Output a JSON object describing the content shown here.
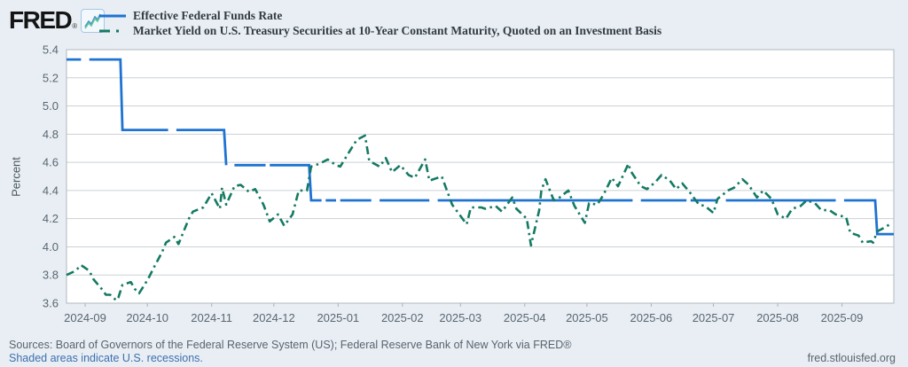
{
  "header": {
    "logo_text": "FRED",
    "registered_mark": "®"
  },
  "legend": [
    {
      "label": "Effective Federal Funds Rate",
      "color": "#1e73d2",
      "style": "solid"
    },
    {
      "label": "Market Yield on U.S. Treasury Securities at 10-Year Constant Maturity, Quoted on an Investment Basis",
      "color": "#147a63",
      "style": "dash-dot"
    }
  ],
  "footer": {
    "sources": "Sources: Board of Governors of the Federal Reserve System (US); Federal Reserve Bank of New York via FRED®",
    "recessions_note": "Shaded areas indicate U.S. recessions.",
    "site": "fred.stlouisfed.org"
  },
  "chart_data": {
    "type": "line",
    "ylabel": "Percent",
    "ylim": [
      3.6,
      5.4
    ],
    "grid": true,
    "legend_position": "top-left",
    "x_domain": [
      "2024-08-23",
      "2025-09-26"
    ],
    "y_ticks": [
      {
        "value": 5.4,
        "label": "5.4"
      },
      {
        "value": 5.2,
        "label": "5.2"
      },
      {
        "value": 5.0,
        "label": "5.0"
      },
      {
        "value": 4.8,
        "label": "4.8"
      },
      {
        "value": 4.6,
        "label": "4.6"
      },
      {
        "value": 4.4,
        "label": "4.4"
      },
      {
        "value": 4.2,
        "label": "4.2"
      },
      {
        "value": 4.0,
        "label": "4.0"
      },
      {
        "value": 3.8,
        "label": "3.8"
      },
      {
        "value": 3.6,
        "label": "3.6"
      }
    ],
    "x_ticks": [
      {
        "date": "2024-09-01",
        "label": "2024-09"
      },
      {
        "date": "2024-10-01",
        "label": "2024-10"
      },
      {
        "date": "2024-11-01",
        "label": "2024-11"
      },
      {
        "date": "2024-12-01",
        "label": "2024-12"
      },
      {
        "date": "2025-01-01",
        "label": "2025-01"
      },
      {
        "date": "2025-02-01",
        "label": "2025-02"
      },
      {
        "date": "2025-03-01",
        "label": "2025-03"
      },
      {
        "date": "2025-04-01",
        "label": "2025-04"
      },
      {
        "date": "2025-05-01",
        "label": "2025-05"
      },
      {
        "date": "2025-06-01",
        "label": "2025-06"
      },
      {
        "date": "2025-07-01",
        "label": "2025-07"
      },
      {
        "date": "2025-08-01",
        "label": "2025-08"
      },
      {
        "date": "2025-09-01",
        "label": "2025-09"
      }
    ],
    "series": [
      {
        "name": "Effective Federal Funds Rate",
        "color": "#1e73d2",
        "style": "solid",
        "segments": [
          [
            [
              "2024-08-23",
              5.33
            ],
            [
              "2024-08-30",
              5.33
            ]
          ],
          [
            [
              "2024-09-03",
              5.33
            ],
            [
              "2024-09-18",
              5.33
            ],
            [
              "2024-09-19",
              4.83
            ],
            [
              "2024-10-11",
              4.83
            ]
          ],
          [
            [
              "2024-10-15",
              4.83
            ],
            [
              "2024-11-07",
              4.83
            ],
            [
              "2024-11-08",
              4.58
            ]
          ],
          [
            [
              "2024-11-12",
              4.58
            ],
            [
              "2024-11-27",
              4.58
            ]
          ],
          [
            [
              "2024-11-29",
              4.58
            ],
            [
              "2024-12-18",
              4.58
            ],
            [
              "2024-12-19",
              4.33
            ],
            [
              "2024-12-24",
              4.33
            ]
          ],
          [
            [
              "2024-12-26",
              4.33
            ],
            [
              "2024-12-31",
              4.33
            ]
          ],
          [
            [
              "2025-01-02",
              4.33
            ],
            [
              "2025-01-17",
              4.33
            ]
          ],
          [
            [
              "2025-01-21",
              4.33
            ],
            [
              "2025-02-14",
              4.33
            ]
          ],
          [
            [
              "2025-02-18",
              4.33
            ],
            [
              "2025-05-23",
              4.33
            ]
          ],
          [
            [
              "2025-05-27",
              4.33
            ],
            [
              "2025-06-18",
              4.33
            ]
          ],
          [
            [
              "2025-06-20",
              4.33
            ],
            [
              "2025-07-03",
              4.33
            ]
          ],
          [
            [
              "2025-07-07",
              4.33
            ],
            [
              "2025-08-29",
              4.33
            ]
          ],
          [
            [
              "2025-09-02",
              4.33
            ],
            [
              "2025-09-17",
              4.33
            ],
            [
              "2025-09-18",
              4.09
            ],
            [
              "2025-09-26",
              4.09
            ]
          ]
        ]
      },
      {
        "name": "Market Yield on U.S. Treasury Securities at 10-Year Constant Maturity, Quoted on an Investment Basis",
        "color": "#147a63",
        "style": "dash-dot",
        "points": [
          [
            "2024-08-23",
            3.8
          ],
          [
            "2024-08-26",
            3.82
          ],
          [
            "2024-08-28",
            3.84
          ],
          [
            "2024-08-30",
            3.87
          ],
          [
            "2024-09-03",
            3.83
          ],
          [
            "2024-09-05",
            3.77
          ],
          [
            "2024-09-09",
            3.7
          ],
          [
            "2024-09-11",
            3.66
          ],
          [
            "2024-09-13",
            3.66
          ],
          [
            "2024-09-16",
            3.62
          ],
          [
            "2024-09-17",
            3.64
          ],
          [
            "2024-09-19",
            3.73
          ],
          [
            "2024-09-23",
            3.75
          ],
          [
            "2024-09-25",
            3.7
          ],
          [
            "2024-09-27",
            3.67
          ],
          [
            "2024-09-30",
            3.74
          ],
          [
            "2024-10-02",
            3.79
          ],
          [
            "2024-10-04",
            3.85
          ],
          [
            "2024-10-08",
            3.96
          ],
          [
            "2024-10-10",
            4.03
          ],
          [
            "2024-10-14",
            4.07
          ],
          [
            "2024-10-16",
            4.02
          ],
          [
            "2024-10-21",
            4.2
          ],
          [
            "2024-10-23",
            4.25
          ],
          [
            "2024-10-28",
            4.28
          ],
          [
            "2024-11-01",
            4.38
          ],
          [
            "2024-11-05",
            4.27
          ],
          [
            "2024-11-06",
            4.42
          ],
          [
            "2024-11-08",
            4.3
          ],
          [
            "2024-11-12",
            4.43
          ],
          [
            "2024-11-15",
            4.44
          ],
          [
            "2024-11-19",
            4.39
          ],
          [
            "2024-11-22",
            4.41
          ],
          [
            "2024-11-26",
            4.3
          ],
          [
            "2024-11-29",
            4.18
          ],
          [
            "2024-12-03",
            4.23
          ],
          [
            "2024-12-06",
            4.15
          ],
          [
            "2024-12-10",
            4.23
          ],
          [
            "2024-12-13",
            4.4
          ],
          [
            "2024-12-17",
            4.4
          ],
          [
            "2024-12-19",
            4.57
          ],
          [
            "2024-12-23",
            4.59
          ],
          [
            "2024-12-27",
            4.62
          ],
          [
            "2024-12-31",
            4.58
          ],
          [
            "2025-01-02",
            4.57
          ],
          [
            "2025-01-07",
            4.69
          ],
          [
            "2025-01-10",
            4.76
          ],
          [
            "2025-01-14",
            4.79
          ],
          [
            "2025-01-16",
            4.61
          ],
          [
            "2025-01-21",
            4.57
          ],
          [
            "2025-01-24",
            4.63
          ],
          [
            "2025-01-27",
            4.53
          ],
          [
            "2025-01-31",
            4.58
          ],
          [
            "2025-02-04",
            4.51
          ],
          [
            "2025-02-07",
            4.49
          ],
          [
            "2025-02-12",
            4.62
          ],
          [
            "2025-02-14",
            4.47
          ],
          [
            "2025-02-20",
            4.5
          ],
          [
            "2025-02-25",
            4.3
          ],
          [
            "2025-02-28",
            4.24
          ],
          [
            "2025-03-04",
            4.16
          ],
          [
            "2025-03-06",
            4.28
          ],
          [
            "2025-03-11",
            4.28
          ],
          [
            "2025-03-13",
            4.27
          ],
          [
            "2025-03-18",
            4.29
          ],
          [
            "2025-03-21",
            4.25
          ],
          [
            "2025-03-26",
            4.35
          ],
          [
            "2025-03-28",
            4.27
          ],
          [
            "2025-04-02",
            4.2
          ],
          [
            "2025-04-04",
            4.01
          ],
          [
            "2025-04-08",
            4.26
          ],
          [
            "2025-04-09",
            4.4
          ],
          [
            "2025-04-11",
            4.48
          ],
          [
            "2025-04-15",
            4.33
          ],
          [
            "2025-04-17",
            4.34
          ],
          [
            "2025-04-22",
            4.4
          ],
          [
            "2025-04-25",
            4.29
          ],
          [
            "2025-04-30",
            4.17
          ],
          [
            "2025-05-02",
            4.31
          ],
          [
            "2025-05-06",
            4.3
          ],
          [
            "2025-05-09",
            4.37
          ],
          [
            "2025-05-13",
            4.49
          ],
          [
            "2025-05-16",
            4.43
          ],
          [
            "2025-05-21",
            4.59
          ],
          [
            "2025-05-22",
            4.54
          ],
          [
            "2025-05-27",
            4.43
          ],
          [
            "2025-05-30",
            4.41
          ],
          [
            "2025-06-03",
            4.46
          ],
          [
            "2025-06-06",
            4.51
          ],
          [
            "2025-06-10",
            4.47
          ],
          [
            "2025-06-13",
            4.41
          ],
          [
            "2025-06-16",
            4.45
          ],
          [
            "2025-06-20",
            4.38
          ],
          [
            "2025-06-24",
            4.3
          ],
          [
            "2025-06-27",
            4.29
          ],
          [
            "2025-07-01",
            4.24
          ],
          [
            "2025-07-03",
            4.34
          ],
          [
            "2025-07-08",
            4.4
          ],
          [
            "2025-07-11",
            4.42
          ],
          [
            "2025-07-15",
            4.48
          ],
          [
            "2025-07-18",
            4.44
          ],
          [
            "2025-07-22",
            4.35
          ],
          [
            "2025-07-25",
            4.4
          ],
          [
            "2025-07-29",
            4.34
          ],
          [
            "2025-08-01",
            4.23
          ],
          [
            "2025-08-05",
            4.2
          ],
          [
            "2025-08-08",
            4.27
          ],
          [
            "2025-08-12",
            4.29
          ],
          [
            "2025-08-15",
            4.33
          ],
          [
            "2025-08-19",
            4.31
          ],
          [
            "2025-08-22",
            4.26
          ],
          [
            "2025-08-26",
            4.26
          ],
          [
            "2025-08-29",
            4.23
          ],
          [
            "2025-09-03",
            4.21
          ],
          [
            "2025-09-05",
            4.1
          ],
          [
            "2025-09-09",
            4.08
          ],
          [
            "2025-09-11",
            4.03
          ],
          [
            "2025-09-15",
            4.04
          ],
          [
            "2025-09-16",
            4.03
          ],
          [
            "2025-09-18",
            4.11
          ],
          [
            "2025-09-22",
            4.14
          ],
          [
            "2025-09-25",
            4.17
          ]
        ]
      }
    ]
  }
}
